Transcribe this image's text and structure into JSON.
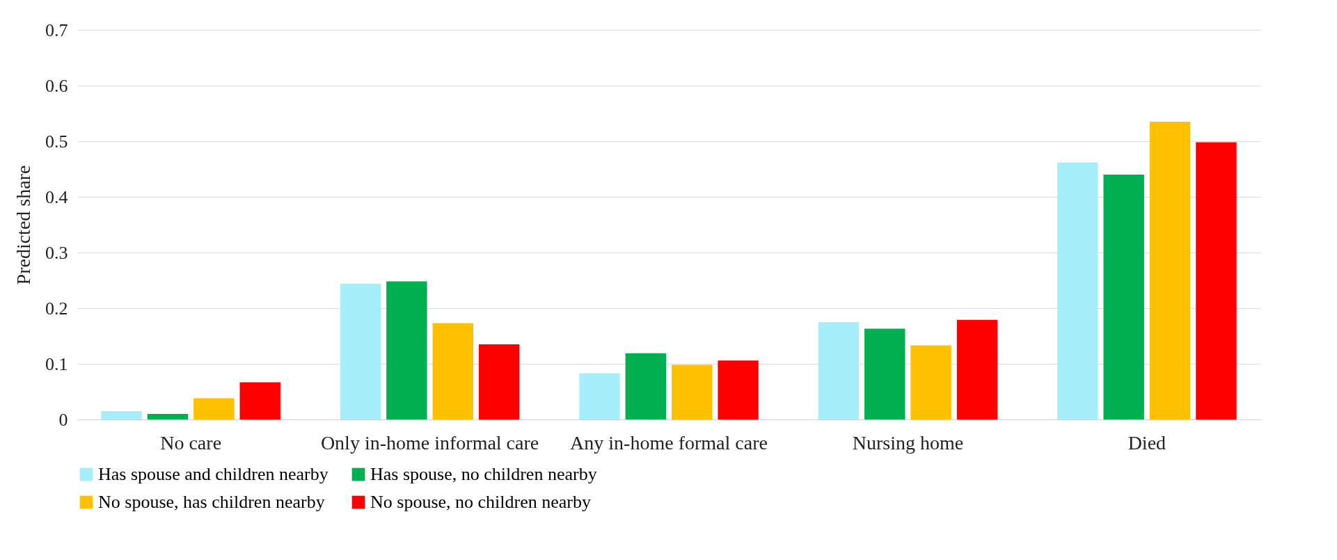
{
  "chart_data": {
    "type": "bar",
    "ylabel": "Predicted share",
    "categories": [
      "No care",
      "Only in-home informal care",
      "Any in-home formal care",
      "Nursing home",
      "Died"
    ],
    "series": [
      {
        "name": "Has spouse and children nearby",
        "color": "#a6eefa",
        "values": [
          0.015,
          0.244,
          0.083,
          0.175,
          0.462
        ]
      },
      {
        "name": "Has spouse, no children nearby",
        "color": "#00b050",
        "values": [
          0.01,
          0.248,
          0.119,
          0.163,
          0.44
        ]
      },
      {
        "name": "No spouse, has children nearby",
        "color": "#ffc000",
        "values": [
          0.038,
          0.173,
          0.098,
          0.133,
          0.535
        ]
      },
      {
        "name": "No spouse, no children nearby",
        "color": "#ff0000",
        "values": [
          0.067,
          0.135,
          0.106,
          0.179,
          0.498
        ]
      }
    ],
    "ylim": [
      0,
      0.7
    ],
    "yticks": [
      0,
      0.1,
      0.2,
      0.3,
      0.4,
      0.5,
      0.6,
      0.7
    ],
    "grid": "y",
    "legend": "bottom"
  }
}
